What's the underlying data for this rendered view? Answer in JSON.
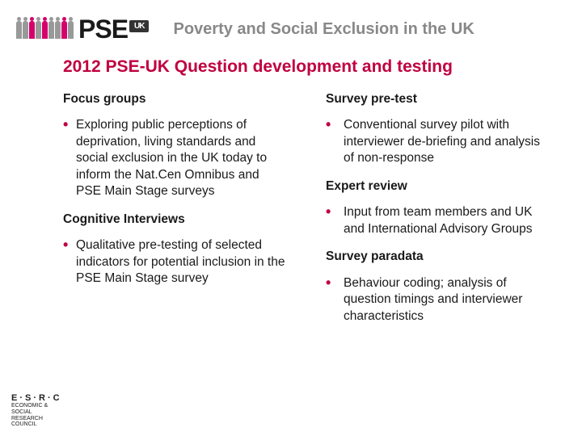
{
  "header": {
    "logo_text": "PSE",
    "logo_badge": "UK",
    "tagline": "Poverty and Social Exclusion in the UK",
    "people_colors": [
      "#999",
      "#999",
      "#d6006c",
      "#999",
      "#d6006c",
      "#999",
      "#999",
      "#d6006c",
      "#999"
    ]
  },
  "title": "2012 PSE-UK Question development and testing",
  "left": {
    "h1": "Focus groups",
    "b1": "Exploring public perceptions of deprivation, living standards and social exclusion in the UK today to inform the Nat.Cen Omnibus and PSE Main Stage surveys",
    "h2": "Cognitive Interviews",
    "b2": "Qualitative pre-testing of selected indicators for potential inclusion in the PSE Main Stage survey"
  },
  "right": {
    "h1": "Survey pre-test",
    "b1": "Conventional survey pilot with interviewer de-briefing and analysis of non-response",
    "h2": "Expert review",
    "b2": "Input from team members and UK and International Advisory Groups",
    "h3": "Survey paradata",
    "b3": "Behaviour coding; analysis of question timings and interviewer characteristics"
  },
  "footer": {
    "line1": "E·S·R·C",
    "line2": "ECONOMIC & SOCIAL RESEARCH COUNCIL"
  },
  "colors": {
    "accent": "#c00040",
    "text": "#1a1a1a",
    "tagline": "#888888",
    "background": "#ffffff"
  }
}
